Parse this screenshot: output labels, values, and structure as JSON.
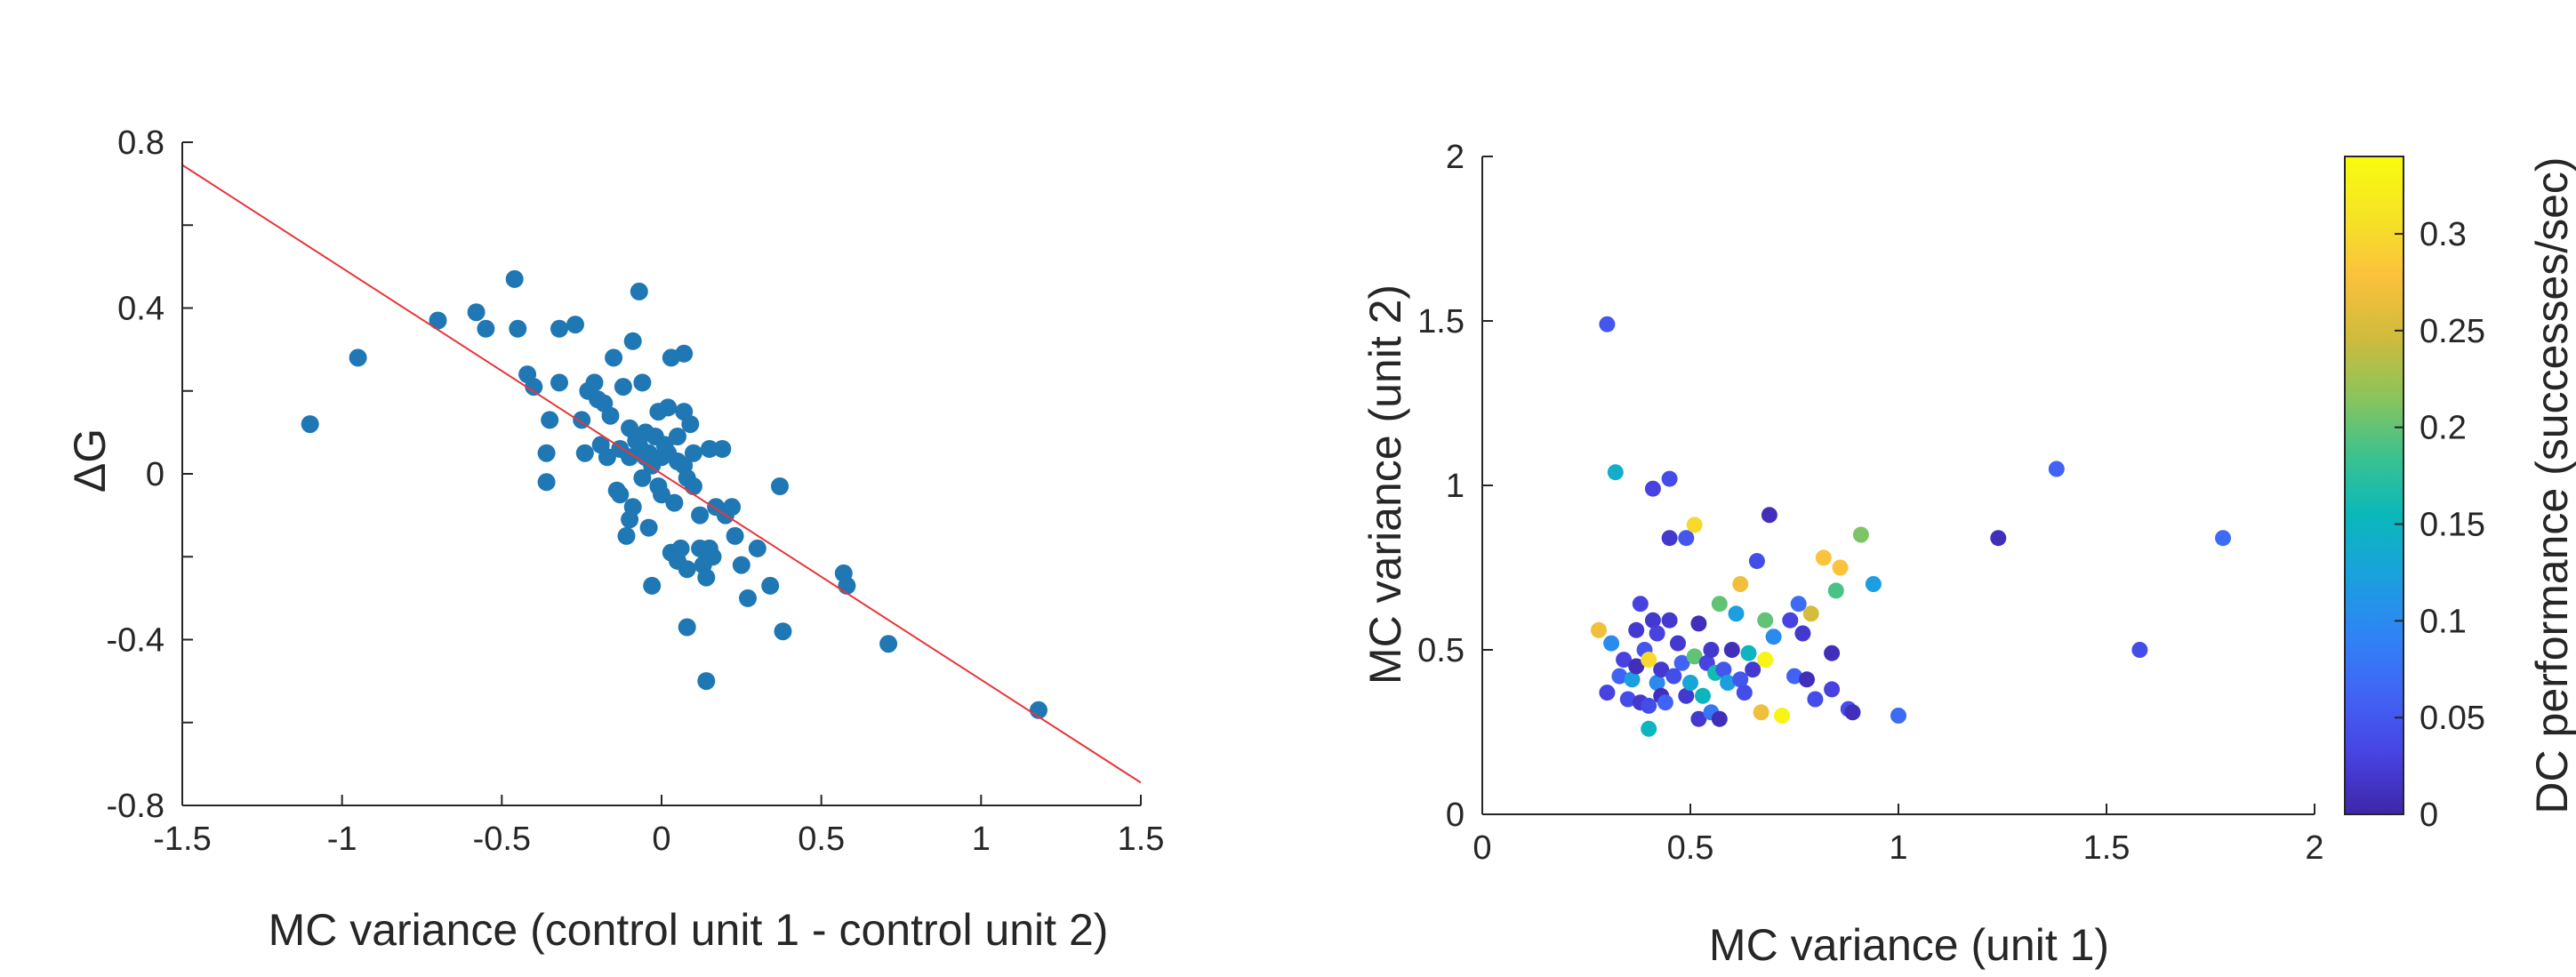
{
  "colors": {
    "marker_left": "#1f77b4",
    "fit_line": "#e8363a",
    "axis": "#262626",
    "colormap": [
      "#3e26a8",
      "#4743e2",
      "#4164f5",
      "#2f84f5",
      "#1aa1dd",
      "#0ab8ba",
      "#3cc28e",
      "#8cc45a",
      "#d1bb3c",
      "#fbc13c",
      "#f5e425",
      "#f9fb0e"
    ]
  },
  "chart_data": [
    {
      "type": "scatter",
      "title": "",
      "xlabel": "MC variance (control unit 1 - control unit 2)",
      "ylabel": "ΔG",
      "xlim": [
        -1.5,
        1.5
      ],
      "ylim": [
        -0.8,
        0.8
      ],
      "xticks": [
        -1.5,
        -1,
        -0.5,
        0,
        0.5,
        1,
        1.5
      ],
      "xtick_labels": [
        "-1.5",
        "-1",
        "-0.5",
        "0",
        "0.5",
        "1",
        "1.5"
      ],
      "yticks": [
        -0.8,
        -0.4,
        0,
        0.4,
        0.8
      ],
      "ytick_labels": [
        "-0.8",
        "-0.4",
        "0",
        "0.4",
        "0.8"
      ],
      "minor_yticks": [
        -0.6,
        -0.2,
        0.2,
        0.6
      ],
      "grid": false,
      "fit_line": {
        "x": [
          -1.5,
          1.5
        ],
        "y": [
          0.745,
          -0.745
        ]
      },
      "points": [
        [
          -1.1,
          0.12
        ],
        [
          -0.95,
          0.28
        ],
        [
          -0.7,
          0.37
        ],
        [
          -0.58,
          0.39
        ],
        [
          -0.55,
          0.35
        ],
        [
          -0.46,
          0.47
        ],
        [
          -0.45,
          0.35
        ],
        [
          -0.42,
          0.24
        ],
        [
          -0.4,
          0.21
        ],
        [
          -0.35,
          0.13
        ],
        [
          -0.36,
          0.05
        ],
        [
          -0.36,
          -0.02
        ],
        [
          -0.32,
          0.22
        ],
        [
          -0.32,
          0.35
        ],
        [
          -0.27,
          0.36
        ],
        [
          -0.25,
          0.13
        ],
        [
          -0.24,
          0.05
        ],
        [
          -0.23,
          0.2
        ],
        [
          -0.21,
          0.22
        ],
        [
          -0.2,
          0.18
        ],
        [
          -0.19,
          0.07
        ],
        [
          -0.18,
          0.17
        ],
        [
          -0.17,
          0.04
        ],
        [
          -0.16,
          0.14
        ],
        [
          -0.15,
          0.28
        ],
        [
          -0.14,
          -0.04
        ],
        [
          -0.13,
          0.06
        ],
        [
          -0.13,
          -0.05
        ],
        [
          -0.12,
          0.21
        ],
        [
          -0.11,
          -0.15
        ],
        [
          -0.1,
          -0.11
        ],
        [
          -0.1,
          0.11
        ],
        [
          -0.1,
          0.04
        ],
        [
          -0.09,
          0.32
        ],
        [
          -0.09,
          -0.08
        ],
        [
          -0.08,
          0.08
        ],
        [
          -0.07,
          0.07
        ],
        [
          -0.07,
          0.44
        ],
        [
          -0.06,
          0.22
        ],
        [
          -0.06,
          -0.01
        ],
        [
          -0.05,
          0.1
        ],
        [
          -0.05,
          0.04
        ],
        [
          -0.04,
          -0.13
        ],
        [
          -0.04,
          0.05
        ],
        [
          -0.03,
          -0.27
        ],
        [
          -0.03,
          0.02
        ],
        [
          -0.02,
          0.09
        ],
        [
          -0.01,
          0.15
        ],
        [
          -0.01,
          -0.03
        ],
        [
          0.0,
          -0.05
        ],
        [
          0.0,
          0.04
        ],
        [
          0.01,
          0.07
        ],
        [
          0.02,
          0.16
        ],
        [
          0.02,
          0.05
        ],
        [
          0.03,
          -0.19
        ],
        [
          0.03,
          0.28
        ],
        [
          0.04,
          -0.07
        ],
        [
          0.05,
          -0.21
        ],
        [
          0.05,
          0.03
        ],
        [
          0.05,
          0.09
        ],
        [
          0.06,
          -0.18
        ],
        [
          0.07,
          0.29
        ],
        [
          0.07,
          0.15
        ],
        [
          0.07,
          0.02
        ],
        [
          0.08,
          -0.37
        ],
        [
          0.08,
          -0.01
        ],
        [
          0.08,
          -0.23
        ],
        [
          0.09,
          0.12
        ],
        [
          0.1,
          0.05
        ],
        [
          0.1,
          -0.03
        ],
        [
          0.12,
          -0.18
        ],
        [
          0.12,
          -0.1
        ],
        [
          0.13,
          -0.22
        ],
        [
          0.14,
          -0.5
        ],
        [
          0.14,
          -0.25
        ],
        [
          0.15,
          0.06
        ],
        [
          0.15,
          -0.18
        ],
        [
          0.16,
          -0.2
        ],
        [
          0.17,
          -0.08
        ],
        [
          0.19,
          0.06
        ],
        [
          0.2,
          -0.1
        ],
        [
          0.22,
          -0.08
        ],
        [
          0.23,
          -0.15
        ],
        [
          0.25,
          -0.22
        ],
        [
          0.27,
          -0.3
        ],
        [
          0.3,
          -0.18
        ],
        [
          0.34,
          -0.27
        ],
        [
          0.37,
          -0.03
        ],
        [
          0.38,
          -0.38
        ],
        [
          0.57,
          -0.24
        ],
        [
          0.58,
          -0.27
        ],
        [
          0.71,
          -0.41
        ],
        [
          1.18,
          -0.57
        ]
      ]
    },
    {
      "type": "scatter",
      "title": "",
      "xlabel": "MC variance (unit 1)",
      "ylabel": "MC variance (unit 2)",
      "colorbar_label": "DC performance (successes/sec)",
      "xlim": [
        0,
        2
      ],
      "ylim": [
        0,
        2
      ],
      "clim": [
        0,
        0.34
      ],
      "xticks": [
        0,
        0.5,
        1,
        1.5,
        2
      ],
      "xtick_labels": [
        "0",
        "0.5",
        "1",
        "1.5",
        "2"
      ],
      "yticks": [
        0,
        0.5,
        1,
        1.5,
        2
      ],
      "ytick_labels": [
        "0",
        "0.5",
        "1",
        "1.5",
        "2"
      ],
      "colorbar_ticks": [
        0,
        0.05,
        0.1,
        0.15,
        0.2,
        0.25,
        0.3
      ],
      "colorbar_tick_labels": [
        "0",
        "0.05",
        "0.1",
        "0.15",
        "0.2",
        "0.25",
        "0.3"
      ],
      "grid": false,
      "points": [
        {
          "x": 0.28,
          "y": 0.56,
          "c": 0.27
        },
        {
          "x": 0.3,
          "y": 1.49,
          "c": 0.05
        },
        {
          "x": 0.3,
          "y": 0.37,
          "c": 0.03
        },
        {
          "x": 0.31,
          "y": 0.52,
          "c": 0.1
        },
        {
          "x": 0.32,
          "y": 1.04,
          "c": 0.14
        },
        {
          "x": 0.33,
          "y": 0.42,
          "c": 0.06
        },
        {
          "x": 0.34,
          "y": 0.47,
          "c": 0.03
        },
        {
          "x": 0.35,
          "y": 0.35,
          "c": 0.04
        },
        {
          "x": 0.36,
          "y": 0.41,
          "c": 0.12
        },
        {
          "x": 0.37,
          "y": 0.56,
          "c": 0.02
        },
        {
          "x": 0.37,
          "y": 0.45,
          "c": 0.01
        },
        {
          "x": 0.38,
          "y": 0.64,
          "c": 0.03
        },
        {
          "x": 0.38,
          "y": 0.34,
          "c": 0.02
        },
        {
          "x": 0.39,
          "y": 0.5,
          "c": 0.05
        },
        {
          "x": 0.4,
          "y": 0.47,
          "c": 0.3
        },
        {
          "x": 0.4,
          "y": 0.33,
          "c": 0.04
        },
        {
          "x": 0.4,
          "y": 0.26,
          "c": 0.15
        },
        {
          "x": 0.41,
          "y": 0.99,
          "c": 0.03
        },
        {
          "x": 0.41,
          "y": 0.59,
          "c": 0.02
        },
        {
          "x": 0.42,
          "y": 0.4,
          "c": 0.1
        },
        {
          "x": 0.42,
          "y": 0.55,
          "c": 0.03
        },
        {
          "x": 0.43,
          "y": 0.44,
          "c": 0.02
        },
        {
          "x": 0.43,
          "y": 0.36,
          "c": 0.01
        },
        {
          "x": 0.44,
          "y": 0.34,
          "c": 0.06
        },
        {
          "x": 0.45,
          "y": 1.02,
          "c": 0.04
        },
        {
          "x": 0.45,
          "y": 0.59,
          "c": 0.02
        },
        {
          "x": 0.45,
          "y": 0.84,
          "c": 0.02
        },
        {
          "x": 0.46,
          "y": 0.42,
          "c": 0.04
        },
        {
          "x": 0.47,
          "y": 0.52,
          "c": 0.02
        },
        {
          "x": 0.48,
          "y": 0.46,
          "c": 0.06
        },
        {
          "x": 0.49,
          "y": 0.84,
          "c": 0.05
        },
        {
          "x": 0.49,
          "y": 0.36,
          "c": 0.02
        },
        {
          "x": 0.5,
          "y": 0.4,
          "c": 0.13
        },
        {
          "x": 0.51,
          "y": 0.88,
          "c": 0.3
        },
        {
          "x": 0.51,
          "y": 0.48,
          "c": 0.2
        },
        {
          "x": 0.52,
          "y": 0.29,
          "c": 0.02
        },
        {
          "x": 0.52,
          "y": 0.58,
          "c": 0.01
        },
        {
          "x": 0.53,
          "y": 0.36,
          "c": 0.15
        },
        {
          "x": 0.54,
          "y": 0.46,
          "c": 0.03
        },
        {
          "x": 0.55,
          "y": 0.31,
          "c": 0.08
        },
        {
          "x": 0.55,
          "y": 0.5,
          "c": 0.02
        },
        {
          "x": 0.56,
          "y": 0.43,
          "c": 0.16
        },
        {
          "x": 0.57,
          "y": 0.64,
          "c": 0.2
        },
        {
          "x": 0.57,
          "y": 0.29,
          "c": 0.01
        },
        {
          "x": 0.58,
          "y": 0.44,
          "c": 0.05
        },
        {
          "x": 0.59,
          "y": 0.4,
          "c": 0.12
        },
        {
          "x": 0.6,
          "y": 0.5,
          "c": 0.01
        },
        {
          "x": 0.61,
          "y": 0.61,
          "c": 0.12
        },
        {
          "x": 0.62,
          "y": 0.7,
          "c": 0.27
        },
        {
          "x": 0.62,
          "y": 0.41,
          "c": 0.05
        },
        {
          "x": 0.63,
          "y": 0.37,
          "c": 0.04
        },
        {
          "x": 0.64,
          "y": 0.49,
          "c": 0.15
        },
        {
          "x": 0.65,
          "y": 0.44,
          "c": 0.02
        },
        {
          "x": 0.66,
          "y": 0.77,
          "c": 0.04
        },
        {
          "x": 0.67,
          "y": 0.31,
          "c": 0.27
        },
        {
          "x": 0.68,
          "y": 0.59,
          "c": 0.2
        },
        {
          "x": 0.68,
          "y": 0.47,
          "c": 0.33
        },
        {
          "x": 0.69,
          "y": 0.91,
          "c": 0.01
        },
        {
          "x": 0.7,
          "y": 0.54,
          "c": 0.1
        },
        {
          "x": 0.72,
          "y": 0.3,
          "c": 0.33
        },
        {
          "x": 0.74,
          "y": 0.59,
          "c": 0.03
        },
        {
          "x": 0.75,
          "y": 0.42,
          "c": 0.06
        },
        {
          "x": 0.76,
          "y": 0.64,
          "c": 0.07
        },
        {
          "x": 0.77,
          "y": 0.55,
          "c": 0.02
        },
        {
          "x": 0.78,
          "y": 0.41,
          "c": 0.01
        },
        {
          "x": 0.79,
          "y": 0.61,
          "c": 0.25
        },
        {
          "x": 0.8,
          "y": 0.35,
          "c": 0.04
        },
        {
          "x": 0.82,
          "y": 0.78,
          "c": 0.28
        },
        {
          "x": 0.84,
          "y": 0.49,
          "c": 0.01
        },
        {
          "x": 0.84,
          "y": 0.38,
          "c": 0.03
        },
        {
          "x": 0.85,
          "y": 0.68,
          "c": 0.19
        },
        {
          "x": 0.86,
          "y": 0.75,
          "c": 0.28
        },
        {
          "x": 0.88,
          "y": 0.32,
          "c": 0.04
        },
        {
          "x": 0.89,
          "y": 0.31,
          "c": 0.01
        },
        {
          "x": 0.91,
          "y": 0.85,
          "c": 0.21
        },
        {
          "x": 0.94,
          "y": 0.7,
          "c": 0.12
        },
        {
          "x": 1.0,
          "y": 0.3,
          "c": 0.07
        },
        {
          "x": 1.24,
          "y": 0.84,
          "c": 0.01
        },
        {
          "x": 1.38,
          "y": 1.05,
          "c": 0.06
        },
        {
          "x": 1.58,
          "y": 0.5,
          "c": 0.04
        },
        {
          "x": 1.78,
          "y": 0.84,
          "c": 0.07
        }
      ]
    }
  ]
}
